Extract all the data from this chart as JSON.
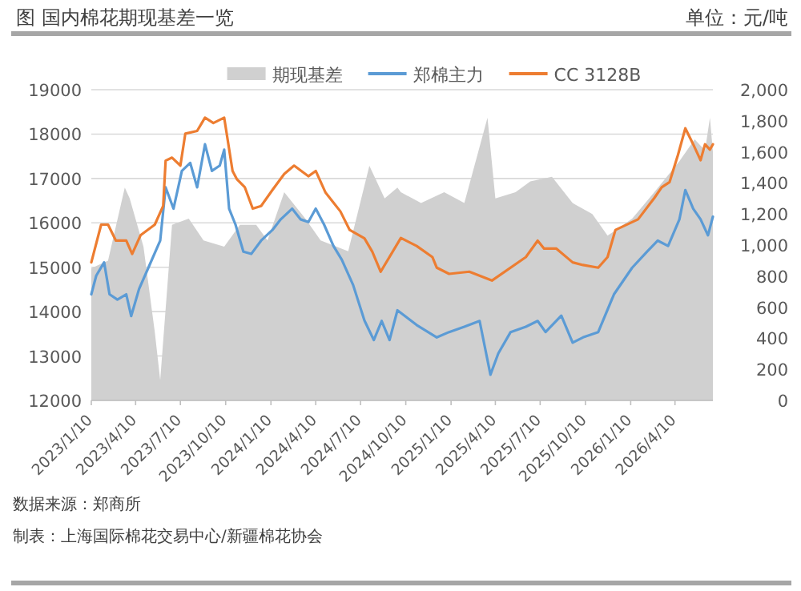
{
  "chart_data": {
    "type": "line",
    "title": "图 国内棉花期现基差一览",
    "annotations": [
      "单位：元/吨",
      "数据来源：郑商所",
      "制表：上海国际棉花交易中心/新疆棉花协会"
    ],
    "xlim": [
      "2023-01-10",
      "2026-06-26"
    ],
    "xticks": [
      {
        "value": "2023-01-10",
        "label": "2023/1/10"
      },
      {
        "value": "2023-04-10",
        "label": "2023/4/10"
      },
      {
        "value": "2023-07-10",
        "label": "2023/7/10"
      },
      {
        "value": "2023-10-10",
        "label": "2023/10/10"
      },
      {
        "value": "2024-01-10",
        "label": "2024/1/10"
      },
      {
        "value": "2024-04-10",
        "label": "2024/4/10"
      },
      {
        "value": "2024-07-10",
        "label": "2024/7/10"
      },
      {
        "value": "2024-10-10",
        "label": "2024/10/10"
      },
      {
        "value": "2025-01-10",
        "label": "2025/1/10"
      },
      {
        "value": "2025-04-10",
        "label": "2025/4/10"
      },
      {
        "value": "2025-07-10",
        "label": "2025/7/10"
      },
      {
        "value": "2025-10-10",
        "label": "2025/10/10"
      },
      {
        "value": "2026-01-10",
        "label": "2026/1/10"
      },
      {
        "value": "2026-04-10",
        "label": "2026/4/10"
      }
    ],
    "ylim": [
      12000,
      19000
    ],
    "yticks": [
      12000,
      13000,
      14000,
      15000,
      16000,
      17000,
      18000,
      19000
    ],
    "y2lim": [
      0,
      2000
    ],
    "y2ticks": [
      {
        "value": 0,
        "label": "0"
      },
      {
        "value": 200,
        "label": "200"
      },
      {
        "value": 400,
        "label": "400"
      },
      {
        "value": 600,
        "label": "600"
      },
      {
        "value": 800,
        "label": "800"
      },
      {
        "value": 1000,
        "label": "1,000"
      },
      {
        "value": 1200,
        "label": "1,200"
      },
      {
        "value": 1400,
        "label": "1,400"
      },
      {
        "value": 1600,
        "label": "1,600"
      },
      {
        "value": 1800,
        "label": "1,800"
      },
      {
        "value": 2000,
        "label": "2,000"
      }
    ],
    "grid": "y",
    "legend": "top",
    "series": [
      {
        "name": "期现基差",
        "type": "area",
        "axis": "y2",
        "color": "#d0d0d0",
        "x": [
          "2023-01-10",
          "2023-02-13",
          "2023-03-19",
          "2023-03-29",
          "2023-04-26",
          "2023-05-19",
          "2023-05-30",
          "2023-06-23",
          "2023-07-27",
          "2023-08-26",
          "2023-10-07",
          "2023-11-08",
          "2023-12-11",
          "2024-01-03",
          "2024-02-06",
          "2024-03-20",
          "2024-04-20",
          "2024-06-15",
          "2024-07-28",
          "2024-08-28",
          "2024-09-23",
          "2024-09-30",
          "2024-11-10",
          "2024-12-27",
          "2025-02-06",
          "2025-03-25",
          "2025-04-10",
          "2025-05-21",
          "2025-06-20",
          "2025-08-03",
          "2025-09-14",
          "2025-10-24",
          "2025-11-24",
          "2026-01-13",
          "2026-02-27",
          "2026-04-19",
          "2026-05-20",
          "2026-06-10",
          "2026-06-20",
          "2026-06-26"
        ],
        "values": [
          850,
          900,
          1370,
          1300,
          990,
          440,
          130,
          1130,
          1170,
          1030,
          990,
          1130,
          1130,
          1030,
          1340,
          1170,
          1030,
          960,
          1510,
          1300,
          1370,
          1340,
          1270,
          1340,
          1270,
          1820,
          1300,
          1340,
          1410,
          1440,
          1270,
          1200,
          1060,
          1170,
          1340,
          1540,
          1680,
          1610,
          1820,
          1600
        ]
      },
      {
        "name": "郑棉主力",
        "color": "#5b9bd5",
        "x": [
          "2023-01-10",
          "2023-01-20",
          "2023-02-05",
          "2023-02-16",
          "2023-03-04",
          "2023-03-22",
          "2023-04-01",
          "2023-04-17",
          "2023-05-06",
          "2023-05-30",
          "2023-06-10",
          "2023-06-26",
          "2023-07-13",
          "2023-07-30",
          "2023-08-13",
          "2023-08-29",
          "2023-09-12",
          "2023-09-28",
          "2023-10-07",
          "2023-10-17",
          "2023-10-30",
          "2023-11-15",
          "2023-12-01",
          "2023-12-21",
          "2024-01-13",
          "2024-01-30",
          "2024-02-22",
          "2024-03-10",
          "2024-03-26",
          "2024-04-10",
          "2024-04-27",
          "2024-05-16",
          "2024-06-02",
          "2024-06-25",
          "2024-07-18",
          "2024-08-06",
          "2024-08-22",
          "2024-09-07",
          "2024-09-23",
          "2024-11-01",
          "2024-12-12",
          "2025-01-06",
          "2025-02-06",
          "2025-03-09",
          "2025-03-31",
          "2025-04-16",
          "2025-05-11",
          "2025-06-11",
          "2025-07-05",
          "2025-07-21",
          "2025-08-22",
          "2025-09-14",
          "2025-10-05",
          "2025-11-05",
          "2025-12-07",
          "2026-01-13",
          "2026-02-12",
          "2026-03-06",
          "2026-03-27",
          "2026-04-19",
          "2026-05-01",
          "2026-05-17",
          "2026-06-01",
          "2026-06-16",
          "2026-06-26"
        ],
        "values": [
          14390,
          14810,
          15110,
          14390,
          14270,
          14390,
          13900,
          14510,
          14990,
          15600,
          16800,
          16320,
          17170,
          17350,
          16800,
          17770,
          17170,
          17290,
          17650,
          16320,
          15960,
          15350,
          15300,
          15600,
          15840,
          16080,
          16320,
          16080,
          16020,
          16320,
          15960,
          15480,
          15170,
          14600,
          13800,
          13360,
          13790,
          13360,
          14030,
          13700,
          13420,
          13540,
          13660,
          13790,
          12580,
          13060,
          13540,
          13660,
          13790,
          13540,
          13910,
          13300,
          13420,
          13540,
          14390,
          14990,
          15350,
          15600,
          15480,
          16080,
          16740,
          16320,
          16080,
          15720,
          16140
        ]
      },
      {
        "name": "CC 3128B",
        "color": "#ed7d31",
        "x": [
          "2023-01-10",
          "2023-01-30",
          "2023-02-13",
          "2023-03-01",
          "2023-03-22",
          "2023-04-03",
          "2023-04-20",
          "2023-05-19",
          "2023-06-05",
          "2023-06-10",
          "2023-06-23",
          "2023-07-10",
          "2023-07-20",
          "2023-08-13",
          "2023-08-29",
          "2023-09-15",
          "2023-10-07",
          "2023-10-24",
          "2023-11-02",
          "2023-11-18",
          "2023-12-04",
          "2023-12-21",
          "2024-01-13",
          "2024-02-06",
          "2024-02-26",
          "2024-03-26",
          "2024-04-10",
          "2024-04-30",
          "2024-05-30",
          "2024-06-18",
          "2024-07-18",
          "2024-08-03",
          "2024-08-20",
          "2024-09-30",
          "2024-11-01",
          "2024-12-03",
          "2024-12-12",
          "2025-01-06",
          "2025-02-16",
          "2025-04-03",
          "2025-06-11",
          "2025-07-05",
          "2025-07-18",
          "2025-08-12",
          "2025-09-14",
          "2025-10-05",
          "2025-11-05",
          "2025-11-24",
          "2025-12-10",
          "2026-01-25",
          "2026-02-27",
          "2026-03-14",
          "2026-03-30",
          "2026-04-16",
          "2026-05-01",
          "2026-05-17",
          "2026-06-01",
          "2026-06-10",
          "2026-06-20",
          "2026-06-26"
        ],
        "values": [
          15110,
          15960,
          15960,
          15600,
          15600,
          15300,
          15720,
          15960,
          16380,
          17400,
          17470,
          17290,
          18010,
          18070,
          18370,
          18250,
          18370,
          17170,
          16980,
          16800,
          16320,
          16380,
          16740,
          17100,
          17290,
          17050,
          17170,
          16680,
          16260,
          15840,
          15650,
          15350,
          14900,
          15660,
          15480,
          15230,
          14990,
          14850,
          14900,
          14700,
          15230,
          15600,
          15420,
          15420,
          15110,
          15050,
          14990,
          15230,
          15840,
          16080,
          16560,
          16800,
          16920,
          17530,
          18130,
          17770,
          17410,
          17770,
          17650,
          17770
        ]
      }
    ]
  }
}
